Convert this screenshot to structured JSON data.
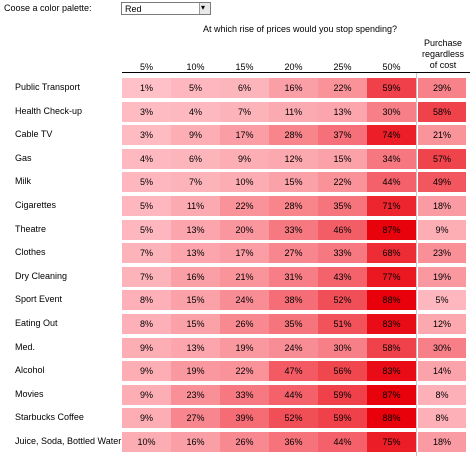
{
  "palette": {
    "label": "Coose a color palette:",
    "value": "Red",
    "dropdown_glyph": "▾"
  },
  "question": "At which rise of prices would you stop spending?",
  "purchase_header": [
    "Purchase",
    "regardless",
    "of cost"
  ],
  "columns": [
    "5%",
    "10%",
    "15%",
    "20%",
    "25%",
    "50%"
  ],
  "rows": [
    {
      "label": "Public Transport",
      "values": [
        "1%",
        "5%",
        "6%",
        "16%",
        "22%",
        "59%"
      ],
      "regardless": "29%"
    },
    {
      "label": "Health Check-up",
      "values": [
        "3%",
        "4%",
        "7%",
        "11%",
        "13%",
        "30%"
      ],
      "regardless": "58%"
    },
    {
      "label": "Cable TV",
      "values": [
        "3%",
        "9%",
        "17%",
        "28%",
        "37%",
        "74%"
      ],
      "regardless": "21%"
    },
    {
      "label": "Gas",
      "values": [
        "4%",
        "6%",
        "9%",
        "12%",
        "15%",
        "34%"
      ],
      "regardless": "57%"
    },
    {
      "label": "Milk",
      "values": [
        "5%",
        "7%",
        "10%",
        "15%",
        "22%",
        "44%"
      ],
      "regardless": "49%"
    },
    {
      "label": "Cigarettes",
      "values": [
        "5%",
        "11%",
        "22%",
        "28%",
        "35%",
        "71%"
      ],
      "regardless": "18%"
    },
    {
      "label": "Theatre",
      "values": [
        "5%",
        "13%",
        "20%",
        "33%",
        "46%",
        "87%"
      ],
      "regardless": "9%"
    },
    {
      "label": "Clothes",
      "values": [
        "7%",
        "13%",
        "17%",
        "27%",
        "33%",
        "68%"
      ],
      "regardless": "23%"
    },
    {
      "label": "Dry Cleaning",
      "values": [
        "7%",
        "16%",
        "21%",
        "31%",
        "43%",
        "77%"
      ],
      "regardless": "19%"
    },
    {
      "label": "Sport Event",
      "values": [
        "8%",
        "15%",
        "24%",
        "38%",
        "52%",
        "88%"
      ],
      "regardless": "5%"
    },
    {
      "label": "Eating Out",
      "values": [
        "8%",
        "15%",
        "26%",
        "35%",
        "51%",
        "83%"
      ],
      "regardless": "12%"
    },
    {
      "label": "Med.",
      "values": [
        "9%",
        "13%",
        "19%",
        "24%",
        "30%",
        "58%"
      ],
      "regardless": "30%"
    },
    {
      "label": "Alcohol",
      "values": [
        "9%",
        "19%",
        "22%",
        "47%",
        "56%",
        "83%"
      ],
      "regardless": "14%"
    },
    {
      "label": "Movies",
      "values": [
        "9%",
        "23%",
        "33%",
        "44%",
        "59%",
        "87%"
      ],
      "regardless": "8%"
    },
    {
      "label": "Starbucks Coffee",
      "values": [
        "9%",
        "27%",
        "39%",
        "52%",
        "59%",
        "88%"
      ],
      "regardless": "8%"
    },
    {
      "label": "Juice, Soda, Bottled Water",
      "values": [
        "10%",
        "16%",
        "26%",
        "36%",
        "44%",
        "75%"
      ],
      "regardless": "18%"
    }
  ],
  "colors": {
    "low": "#ffc2c9",
    "high": "#e8000a",
    "text": "#000000",
    "rule": "#000000"
  }
}
